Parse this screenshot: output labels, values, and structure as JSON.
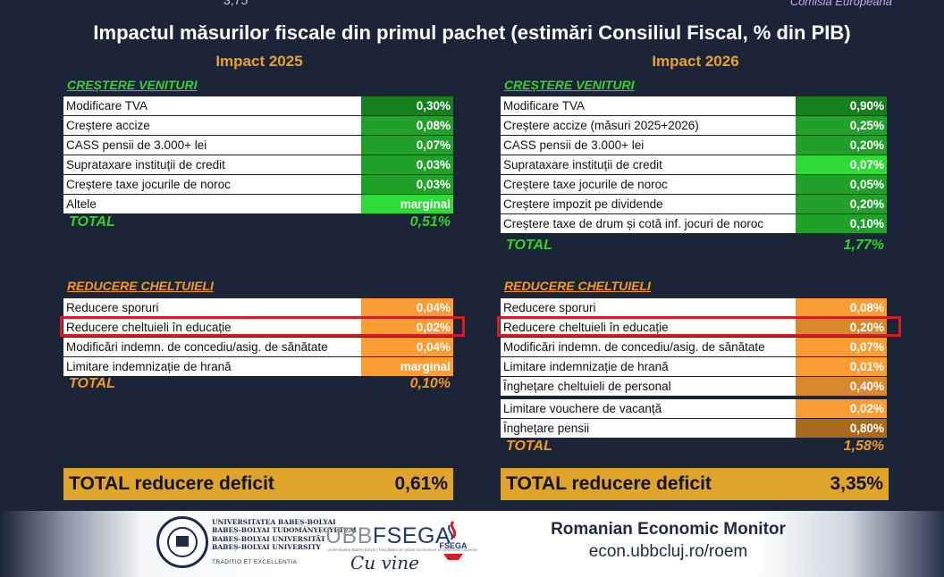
{
  "top": {
    "corner_number": "3,75",
    "source": "Comisia Europeană"
  },
  "title": "Impactul măsurilor fiscale din primul pachet (estimări Consiliul Fiscal, % din PIB)",
  "left": {
    "heading": "Impact 2025",
    "revenue": {
      "section": "CREȘTERE VENITURI",
      "rows": [
        {
          "label": "Modificare TVA",
          "value": "0,30%"
        },
        {
          "label": "Creștere accize",
          "value": "0,08%"
        },
        {
          "label": "CASS pensii de 3.000+ lei",
          "value": "0,07%"
        },
        {
          "label": "Suprataxare instituții de credit",
          "value": "0,03%"
        },
        {
          "label": "Creștere taxe jocurile de noroc",
          "value": "0,03%"
        },
        {
          "label": "Altele",
          "value": "marginal"
        }
      ],
      "total_label": "TOTAL",
      "total_value": "0,51%"
    },
    "spending": {
      "section": "REDUCERE CHELTUIELI",
      "rows": [
        {
          "label": "Reducere sporuri",
          "value": "0,04%"
        },
        {
          "label": "Reducere cheltuieli în educație",
          "value": "0,02%"
        },
        {
          "label": "Modificări indemn. de concediu/asig. de sănătate",
          "value": "0,04%"
        },
        {
          "label": "Limitare indemnizație de hrană",
          "value": "marginal"
        }
      ],
      "total_label": "TOTAL",
      "total_value": "0,10%"
    },
    "deficit_label": "TOTAL reducere deficit",
    "deficit_value": "0,61%"
  },
  "right": {
    "heading": "Impact 2026",
    "revenue": {
      "section": "CREȘTERE VENITURI",
      "rows": [
        {
          "label": "Modificare TVA",
          "value": "0,90%"
        },
        {
          "label": "Creștere accize (măsuri 2025+2026)",
          "value": "0,25%"
        },
        {
          "label": "CASS pensii de 3.000+ lei",
          "value": "0,20%"
        },
        {
          "label": "Suprataxare instituții de credit",
          "value": "0,07%"
        },
        {
          "label": "Creștere taxe jocurile de noroc",
          "value": "0,05%"
        },
        {
          "label": "Creștere impozit pe dividende",
          "value": "0,20%"
        },
        {
          "label": "Creștere taxe de drum și cotă inf. jocuri de noroc",
          "value": "0,10%"
        }
      ],
      "total_label": "TOTAL",
      "total_value": "1,77%"
    },
    "spending": {
      "section": "REDUCERE CHELTUIELI",
      "rows": [
        {
          "label": "Reducere sporuri",
          "value": "0,08%"
        },
        {
          "label": "Reducere cheltuieli în educație",
          "value": "0,20%"
        },
        {
          "label": "Modificări indemn. de concediu/asig. de sănătate",
          "value": "0,07%"
        },
        {
          "label": "Limitare indemnizație de hrană",
          "value": "0,01%"
        },
        {
          "label": "Înghețare cheltuieli de personal",
          "value": "0,40%"
        },
        {
          "label": "Limitare vouchere de vacanță",
          "value": "0,02%"
        },
        {
          "label": "Înghețare pensii",
          "value": "0,80%"
        }
      ],
      "total_label": "TOTAL",
      "total_value": "1,58%"
    },
    "deficit_label": "TOTAL reducere deficit",
    "deficit_value": "3,35%"
  },
  "colors": {
    "background": "#1c2538",
    "heading_orange": "#e9a22c",
    "section_green": "#34d22a",
    "section_orange": "#f19a23",
    "deficit_bar": "#dea52a",
    "highlight_box": "#d21f26"
  },
  "footer": {
    "university_lines": [
      "UNIVERSITATEA BABEȘ-BOLYAI",
      "BABEȘ-BOLYAI TUDOMÁNYEGYETEM",
      "BABEȘ-BOLYAI UNIVERSITÄT",
      "BABEȘ-BOLYAI UNIVERSITY"
    ],
    "university_motto": "TRADITIO ET EXCELLENTIA",
    "logo_ubb": "UBB",
    "logo_fsega": "FSEGA",
    "logo_sub": "Universitatea Babeș-Bolyai | Facultatea de Științe Economice și Gestiunea Afacerilor",
    "logo_script": "Cu vine",
    "emblem_text": "FSEGA",
    "report_title": "Romanian Economic Monitor",
    "report_url": "econ.ubbcluj.ro/roem"
  }
}
